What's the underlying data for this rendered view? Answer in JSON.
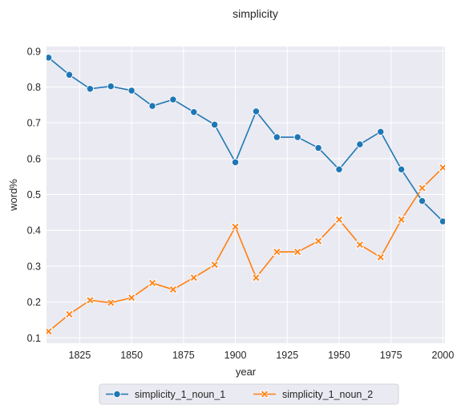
{
  "chart_data": {
    "type": "line",
    "title": "simplicity",
    "xlabel": "year",
    "ylabel": "word%",
    "x": [
      1810,
      1820,
      1830,
      1840,
      1850,
      1860,
      1870,
      1880,
      1890,
      1900,
      1910,
      1920,
      1930,
      1940,
      1950,
      1960,
      1970,
      1980,
      1990,
      2000
    ],
    "series": [
      {
        "name": "simplicity_1_noun_1",
        "color": "#1f77b4",
        "marker": "circle",
        "values": [
          0.882,
          0.834,
          0.795,
          0.802,
          0.79,
          0.747,
          0.765,
          0.73,
          0.695,
          0.59,
          0.732,
          0.66,
          0.66,
          0.63,
          0.57,
          0.64,
          0.675,
          0.57,
          0.482,
          0.425
        ]
      },
      {
        "name": "simplicity_1_noun_2",
        "color": "#ff7f0e",
        "marker": "x",
        "values": [
          0.118,
          0.166,
          0.205,
          0.198,
          0.212,
          0.253,
          0.235,
          0.268,
          0.304,
          0.41,
          0.268,
          0.34,
          0.34,
          0.37,
          0.43,
          0.36,
          0.325,
          0.43,
          0.518,
          0.575
        ]
      }
    ],
    "xlim": [
      1809,
      2001
    ],
    "ylim": [
      0.085,
      0.913
    ],
    "xticks": [
      1825,
      1850,
      1875,
      1900,
      1925,
      1950,
      1975,
      2000
    ],
    "yticks": [
      0.1,
      0.2,
      0.3,
      0.4,
      0.5,
      0.6,
      0.7,
      0.8,
      0.9
    ],
    "grid": true,
    "legend_position": "bottom-center",
    "background": "#eaeaf2",
    "grid_color": "#ffffff"
  }
}
